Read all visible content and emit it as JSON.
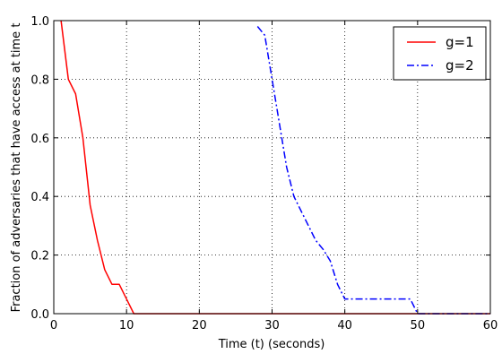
{
  "chart_data": {
    "type": "line",
    "title": "",
    "xlabel": "Time (t) (seconds)",
    "ylabel": "Fraction of adversaries that have access at time t",
    "xlim": [
      0,
      60
    ],
    "ylim": [
      0,
      1.0
    ],
    "xticks": [
      0,
      10,
      20,
      30,
      40,
      50,
      60
    ],
    "yticks": [
      0.0,
      0.2,
      0.4,
      0.6,
      0.8,
      1.0
    ],
    "xtick_labels": [
      "0",
      "10",
      "20",
      "30",
      "40",
      "50",
      "60"
    ],
    "ytick_labels": [
      "0.0",
      "0.2",
      "0.4",
      "0.6",
      "0.8",
      "1.0"
    ],
    "grid": true,
    "legend_position": "top-right",
    "series": [
      {
        "name": "g=1",
        "color": "#ff0000",
        "style": "solid",
        "x": [
          1,
          2,
          3,
          4,
          5,
          6,
          7,
          8,
          9,
          10,
          11,
          12,
          60
        ],
        "y": [
          1.0,
          0.8,
          0.75,
          0.6,
          0.37,
          0.25,
          0.15,
          0.1,
          0.1,
          0.05,
          0.0,
          0.0,
          0.0
        ]
      },
      {
        "name": "g=2",
        "color": "#0000ff",
        "style": "dashdot",
        "x": [
          28,
          29,
          30,
          31,
          32,
          33,
          34,
          35,
          36,
          37,
          38,
          39,
          40,
          41,
          48,
          49,
          50,
          60
        ],
        "y": [
          0.98,
          0.95,
          0.8,
          0.65,
          0.5,
          0.4,
          0.35,
          0.3,
          0.25,
          0.22,
          0.18,
          0.1,
          0.05,
          0.05,
          0.05,
          0.05,
          0.0,
          0.0
        ]
      }
    ]
  }
}
